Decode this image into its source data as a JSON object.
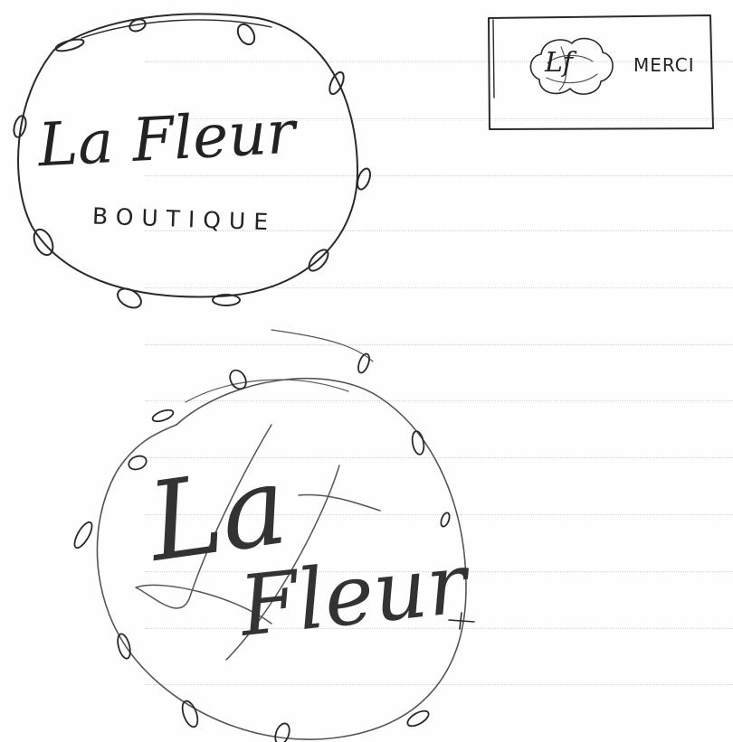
{
  "logo_sketch_1": {
    "name_script": "La Fleur",
    "subtitle": "BOUTIQUE"
  },
  "card_sketch": {
    "monogram": "Lf",
    "text": "MERCI"
  },
  "logo_sketch_2": {
    "word_la": "La",
    "word_fleur": "Fleur"
  },
  "ink_color": "#2a2a2a"
}
